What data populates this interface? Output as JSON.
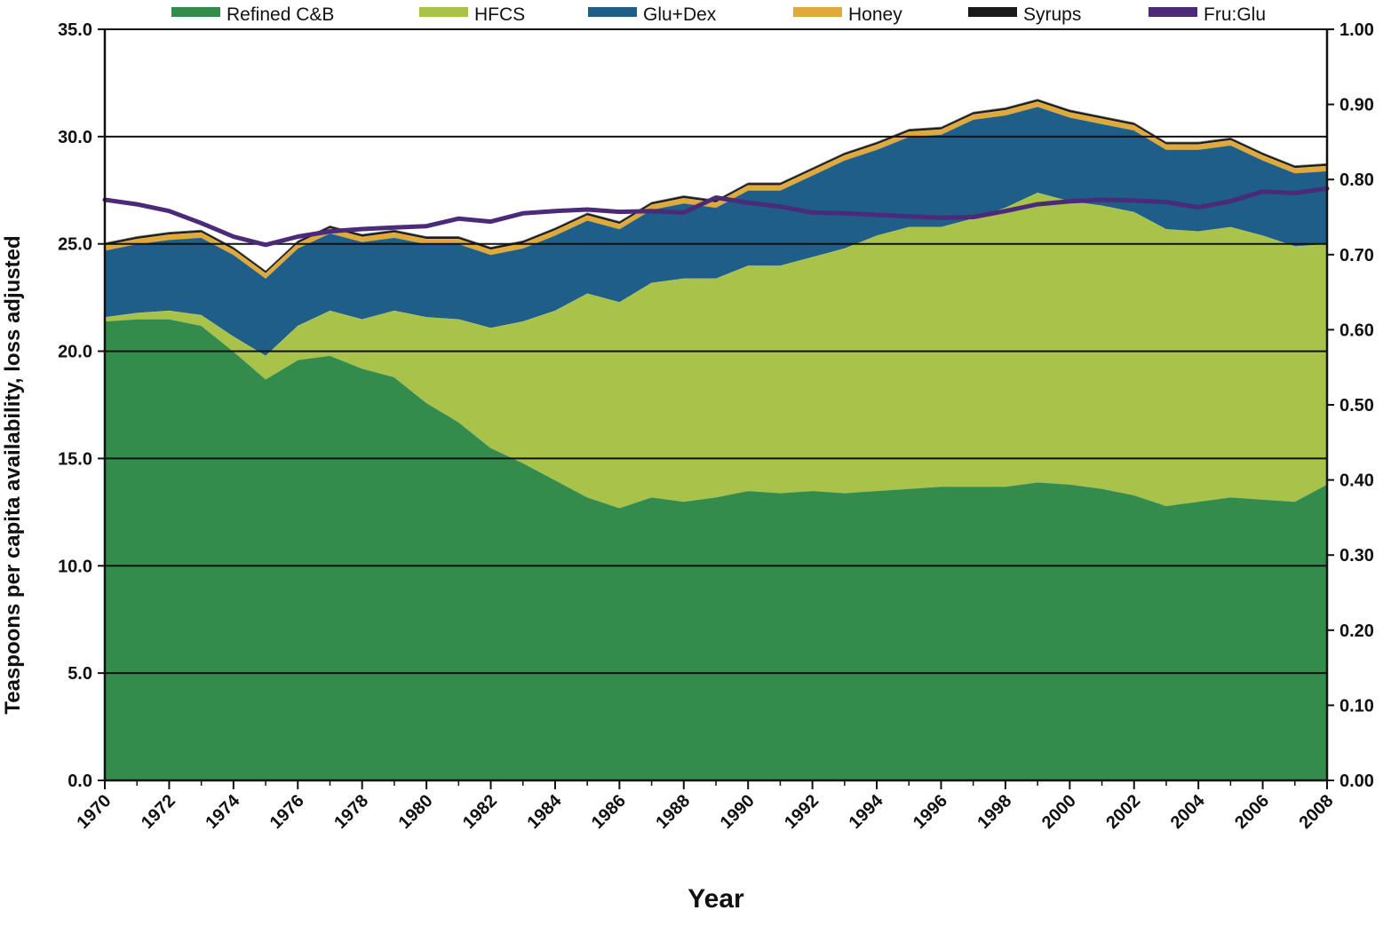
{
  "chart_data": {
    "type": "area",
    "xlabel": "Year",
    "ylabel": "Teaspoons per capita availability, loss adjusted",
    "y2label": "",
    "ylim": [
      0,
      35
    ],
    "y2lim": [
      0,
      1.0
    ],
    "y_ticks": [
      "0.0",
      "5.0",
      "10.0",
      "15.0",
      "20.0",
      "25.0",
      "30.0",
      "35.0"
    ],
    "y2_ticks": [
      "0.00",
      "0.10",
      "0.20",
      "0.30",
      "0.40",
      "0.50",
      "0.60",
      "0.70",
      "0.80",
      "0.90",
      "1.00"
    ],
    "x_tick_labels": [
      "1970",
      "1972",
      "1974",
      "1976",
      "1978",
      "1980",
      "1982",
      "1984",
      "1986",
      "1988",
      "1990",
      "1992",
      "1994",
      "1996",
      "1998",
      "2000",
      "2002",
      "2004",
      "2006",
      "2008"
    ],
    "grid": "horizontal",
    "legend_position": "top",
    "x": [
      1970,
      1971,
      1972,
      1973,
      1974,
      1975,
      1976,
      1977,
      1978,
      1979,
      1980,
      1981,
      1982,
      1983,
      1984,
      1985,
      1986,
      1987,
      1988,
      1989,
      1990,
      1991,
      1992,
      1993,
      1994,
      1995,
      1996,
      1997,
      1998,
      1999,
      2000,
      2001,
      2002,
      2003,
      2004,
      2005,
      2006,
      2007,
      2008
    ],
    "stacked_series": [
      {
        "name": "Refined C&B",
        "color": "#338c4c",
        "values": [
          21.4,
          21.5,
          21.5,
          21.2,
          20.0,
          18.7,
          19.6,
          19.8,
          19.2,
          18.8,
          17.6,
          16.7,
          15.5,
          14.8,
          14.0,
          13.2,
          12.7,
          13.2,
          13.0,
          13.2,
          13.5,
          13.4,
          13.5,
          13.4,
          13.5,
          13.6,
          13.7,
          13.7,
          13.7,
          13.9,
          13.8,
          13.6,
          13.3,
          12.8,
          13.0,
          13.2,
          13.1,
          13.0,
          13.8
        ]
      },
      {
        "name": "HFCS",
        "color": "#a8c24a",
        "values": [
          0.2,
          0.3,
          0.4,
          0.5,
          0.7,
          1.1,
          1.6,
          2.1,
          2.3,
          3.1,
          4.0,
          4.8,
          5.6,
          6.6,
          7.9,
          9.5,
          9.6,
          10.0,
          10.4,
          10.2,
          10.5,
          10.6,
          10.9,
          11.4,
          11.9,
          12.2,
          12.1,
          12.5,
          13.0,
          13.5,
          13.2,
          13.2,
          13.2,
          12.9,
          12.6,
          12.6,
          12.3,
          11.9,
          11.2
        ]
      },
      {
        "name": "Glu+Dex",
        "color": "#1e5e88",
        "values": [
          3.1,
          3.2,
          3.3,
          3.6,
          3.8,
          3.6,
          3.6,
          3.6,
          3.6,
          3.4,
          3.4,
          3.5,
          3.4,
          3.4,
          3.5,
          3.4,
          3.4,
          3.4,
          3.5,
          3.3,
          3.5,
          3.5,
          3.8,
          4.1,
          4.0,
          4.2,
          4.3,
          4.6,
          4.3,
          4.0,
          3.9,
          3.8,
          3.8,
          3.7,
          3.8,
          3.8,
          3.5,
          3.4,
          3.4
        ]
      },
      {
        "name": "Honey",
        "color": "#e0a93a",
        "values": [
          0.25,
          0.25,
          0.25,
          0.25,
          0.25,
          0.25,
          0.25,
          0.25,
          0.25,
          0.25,
          0.25,
          0.25,
          0.25,
          0.25,
          0.25,
          0.25,
          0.25,
          0.25,
          0.25,
          0.25,
          0.25,
          0.25,
          0.25,
          0.25,
          0.25,
          0.25,
          0.25,
          0.25,
          0.25,
          0.25,
          0.25,
          0.25,
          0.25,
          0.25,
          0.25,
          0.25,
          0.25,
          0.25,
          0.25
        ]
      },
      {
        "name": "Syrups",
        "color": "#1a1a1a",
        "values": [
          0.1,
          0.1,
          0.1,
          0.1,
          0.1,
          0.1,
          0.1,
          0.1,
          0.1,
          0.1,
          0.1,
          0.1,
          0.1,
          0.1,
          0.1,
          0.1,
          0.1,
          0.1,
          0.1,
          0.1,
          0.1,
          0.1,
          0.1,
          0.1,
          0.1,
          0.1,
          0.1,
          0.1,
          0.1,
          0.1,
          0.1,
          0.1,
          0.1,
          0.1,
          0.1,
          0.1,
          0.1,
          0.1,
          0.1
        ]
      }
    ],
    "line_series": [
      {
        "name": "Fru:Glu",
        "color": "#4b2a7a",
        "axis": "right",
        "values": [
          0.773,
          0.767,
          0.758,
          0.742,
          0.724,
          0.713,
          0.724,
          0.731,
          0.734,
          0.736,
          0.738,
          0.748,
          0.744,
          0.755,
          0.758,
          0.76,
          0.757,
          0.758,
          0.756,
          0.776,
          0.769,
          0.764,
          0.756,
          0.755,
          0.753,
          0.751,
          0.749,
          0.75,
          0.758,
          0.767,
          0.771,
          0.773,
          0.772,
          0.77,
          0.763,
          0.771,
          0.784,
          0.782,
          0.788
        ]
      }
    ],
    "legend": [
      {
        "label": "Refined C&B",
        "color": "#338c4c"
      },
      {
        "label": "HFCS",
        "color": "#a8c24a"
      },
      {
        "label": "Glu+Dex",
        "color": "#1e5e88"
      },
      {
        "label": "Honey",
        "color": "#e0a93a"
      },
      {
        "label": "Syrups",
        "color": "#1a1a1a"
      },
      {
        "label": "Fru:Glu",
        "color": "#4b2a7a"
      }
    ]
  }
}
